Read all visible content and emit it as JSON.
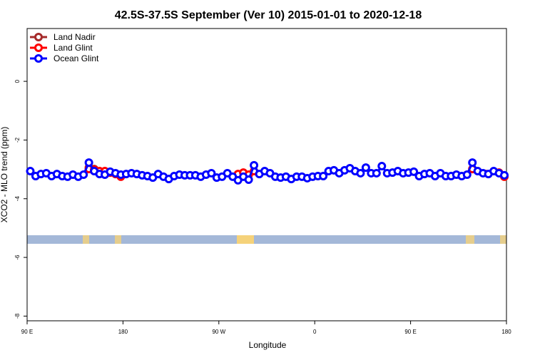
{
  "chart_data": {
    "type": "line",
    "title": "42.5S-37.5S September (Ver 10)   2015-01-01 to 2020-12-18",
    "x_label": "Longitude",
    "y_label": "XCO2 - MLO trend (ppm)",
    "xlim": [
      90,
      540
    ],
    "ylim": [
      -8.16,
      1.8
    ],
    "xticks": [
      {
        "value": 90,
        "label": "90 E"
      },
      180,
      {
        "value": 270,
        "label": "90 W"
      },
      {
        "value": 360,
        "label": "0"
      },
      {
        "value": 450,
        "label": "90 E"
      },
      {
        "value": 540,
        "label": "180"
      }
    ],
    "yticks": [
      0,
      -2,
      -4,
      -6,
      -8
    ],
    "legend": "top-left",
    "series": [
      {
        "name": "Land Nadir",
        "color": "#a52a2a",
        "x": [
          148,
          153
        ],
        "values": [
          -2.94,
          -2.99
        ]
      },
      {
        "name": "Land Glint",
        "color": "#ff0000",
        "x": [
          148,
          153,
          158,
          163,
          168,
          173,
          178,
          null,
          288,
          293,
          298,
          303,
          null,
          508,
          533,
          538
        ],
        "values": [
          -2.99,
          -3.01,
          -3.06,
          -3.06,
          -3.11,
          -3.16,
          -3.25,
          null,
          -3.16,
          -3.11,
          -3.18,
          -3.06,
          null,
          -2.99,
          -3.11,
          -3.25
        ]
      },
      {
        "name": "Ocean Glint",
        "color": "#0000ff",
        "x": [
          93,
          98,
          103,
          108,
          113,
          118,
          123,
          128,
          133,
          138,
          143,
          148,
          153,
          158,
          163,
          168,
          173,
          178,
          183,
          188,
          193,
          198,
          203,
          208,
          213,
          218,
          223,
          228,
          233,
          238,
          243,
          248,
          253,
          258,
          263,
          268,
          273,
          278,
          283,
          288,
          293,
          298,
          303,
          308,
          313,
          318,
          323,
          328,
          333,
          338,
          343,
          348,
          353,
          358,
          363,
          368,
          373,
          378,
          383,
          388,
          393,
          398,
          403,
          408,
          413,
          418,
          423,
          428,
          433,
          438,
          443,
          448,
          453,
          458,
          463,
          468,
          473,
          478,
          483,
          488,
          493,
          498,
          503,
          508,
          513,
          518,
          523,
          528,
          533,
          538
        ],
        "values": [
          -3.06,
          -3.23,
          -3.16,
          -3.13,
          -3.23,
          -3.16,
          -3.23,
          -3.25,
          -3.18,
          -3.25,
          -3.18,
          -2.77,
          -3.06,
          -3.16,
          -3.18,
          -3.08,
          -3.13,
          -3.18,
          -3.16,
          -3.13,
          -3.16,
          -3.2,
          -3.23,
          -3.28,
          -3.16,
          -3.25,
          -3.33,
          -3.23,
          -3.18,
          -3.2,
          -3.2,
          -3.2,
          -3.25,
          -3.18,
          -3.13,
          -3.28,
          -3.25,
          -3.13,
          -3.25,
          -3.37,
          -3.25,
          -3.35,
          -2.86,
          -3.16,
          -3.06,
          -3.13,
          -3.25,
          -3.28,
          -3.25,
          -3.33,
          -3.25,
          -3.25,
          -3.3,
          -3.25,
          -3.23,
          -3.23,
          -3.06,
          -3.03,
          -3.13,
          -3.03,
          -2.96,
          -3.06,
          -3.13,
          -2.94,
          -3.13,
          -3.13,
          -2.89,
          -3.13,
          -3.11,
          -3.06,
          -3.13,
          -3.11,
          -3.08,
          -3.23,
          -3.16,
          -3.13,
          -3.23,
          -3.13,
          -3.23,
          -3.23,
          -3.18,
          -3.23,
          -3.18,
          -2.77,
          -3.06,
          -3.13,
          -3.16,
          -3.06,
          -3.13,
          -3.2
        ]
      }
    ]
  }
}
